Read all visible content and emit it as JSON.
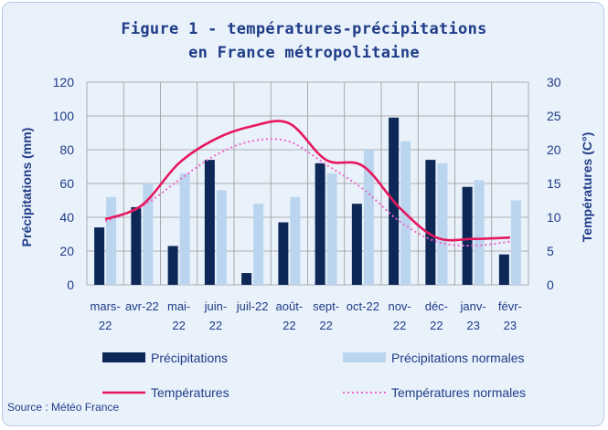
{
  "title": {
    "line1": "Figure 1 - températures-précipitations",
    "line2": "en France métropolitaine"
  },
  "source": "Source : Météo  France",
  "colors": {
    "precip": "#0d2857",
    "precip_normal": "#bcd5ef",
    "temp": "#e6175e",
    "temp_normal": "#ee66cc",
    "text": "#1f3c88",
    "grid": "#999999"
  },
  "chart_data": {
    "type": "bar",
    "categories": [
      [
        "mars-",
        "22"
      ],
      [
        "avr-22",
        ""
      ],
      [
        "mai-",
        "22"
      ],
      [
        "juin-",
        "22"
      ],
      [
        "juil-22",
        ""
      ],
      [
        "août-",
        "22"
      ],
      [
        "sept-",
        "22"
      ],
      [
        "oct-22",
        ""
      ],
      [
        "nov-",
        "22"
      ],
      [
        "déc-",
        "22"
      ],
      [
        "janv-",
        "23"
      ],
      [
        "févr-",
        "23"
      ]
    ],
    "y_left": {
      "label": "Précipitations (mm)",
      "range": [
        0,
        120
      ],
      "ticks": [
        0,
        20,
        40,
        60,
        80,
        100,
        120
      ]
    },
    "y_right": {
      "label": "Températures (C°)",
      "range": [
        0,
        30
      ],
      "ticks": [
        0,
        5,
        10,
        15,
        20,
        25,
        30
      ]
    },
    "grid": true,
    "legend_position": "bottom",
    "series": [
      {
        "name": "Précipitations",
        "type": "bar",
        "axis": "left",
        "values": [
          34,
          46,
          23,
          74,
          7,
          37,
          72,
          48,
          99,
          74,
          58,
          18
        ]
      },
      {
        "name": "Précipitations normales",
        "type": "bar",
        "axis": "left",
        "values": [
          52,
          60,
          66,
          56,
          48,
          52,
          66,
          80,
          85,
          72,
          62,
          50
        ]
      },
      {
        "name": "Températures",
        "type": "line",
        "axis": "right",
        "style": "solid",
        "values": [
          9.7,
          11.8,
          18.0,
          21.6,
          23.5,
          23.9,
          18.5,
          17.6,
          11.4,
          7.0,
          6.8,
          7.0
        ]
      },
      {
        "name": "Températures normales",
        "type": "line",
        "axis": "right",
        "style": "dotted",
        "values": [
          9.4,
          11.6,
          15.5,
          19.2,
          21.3,
          21.2,
          17.8,
          14.2,
          9.4,
          6.4,
          5.8,
          6.4
        ]
      }
    ]
  }
}
